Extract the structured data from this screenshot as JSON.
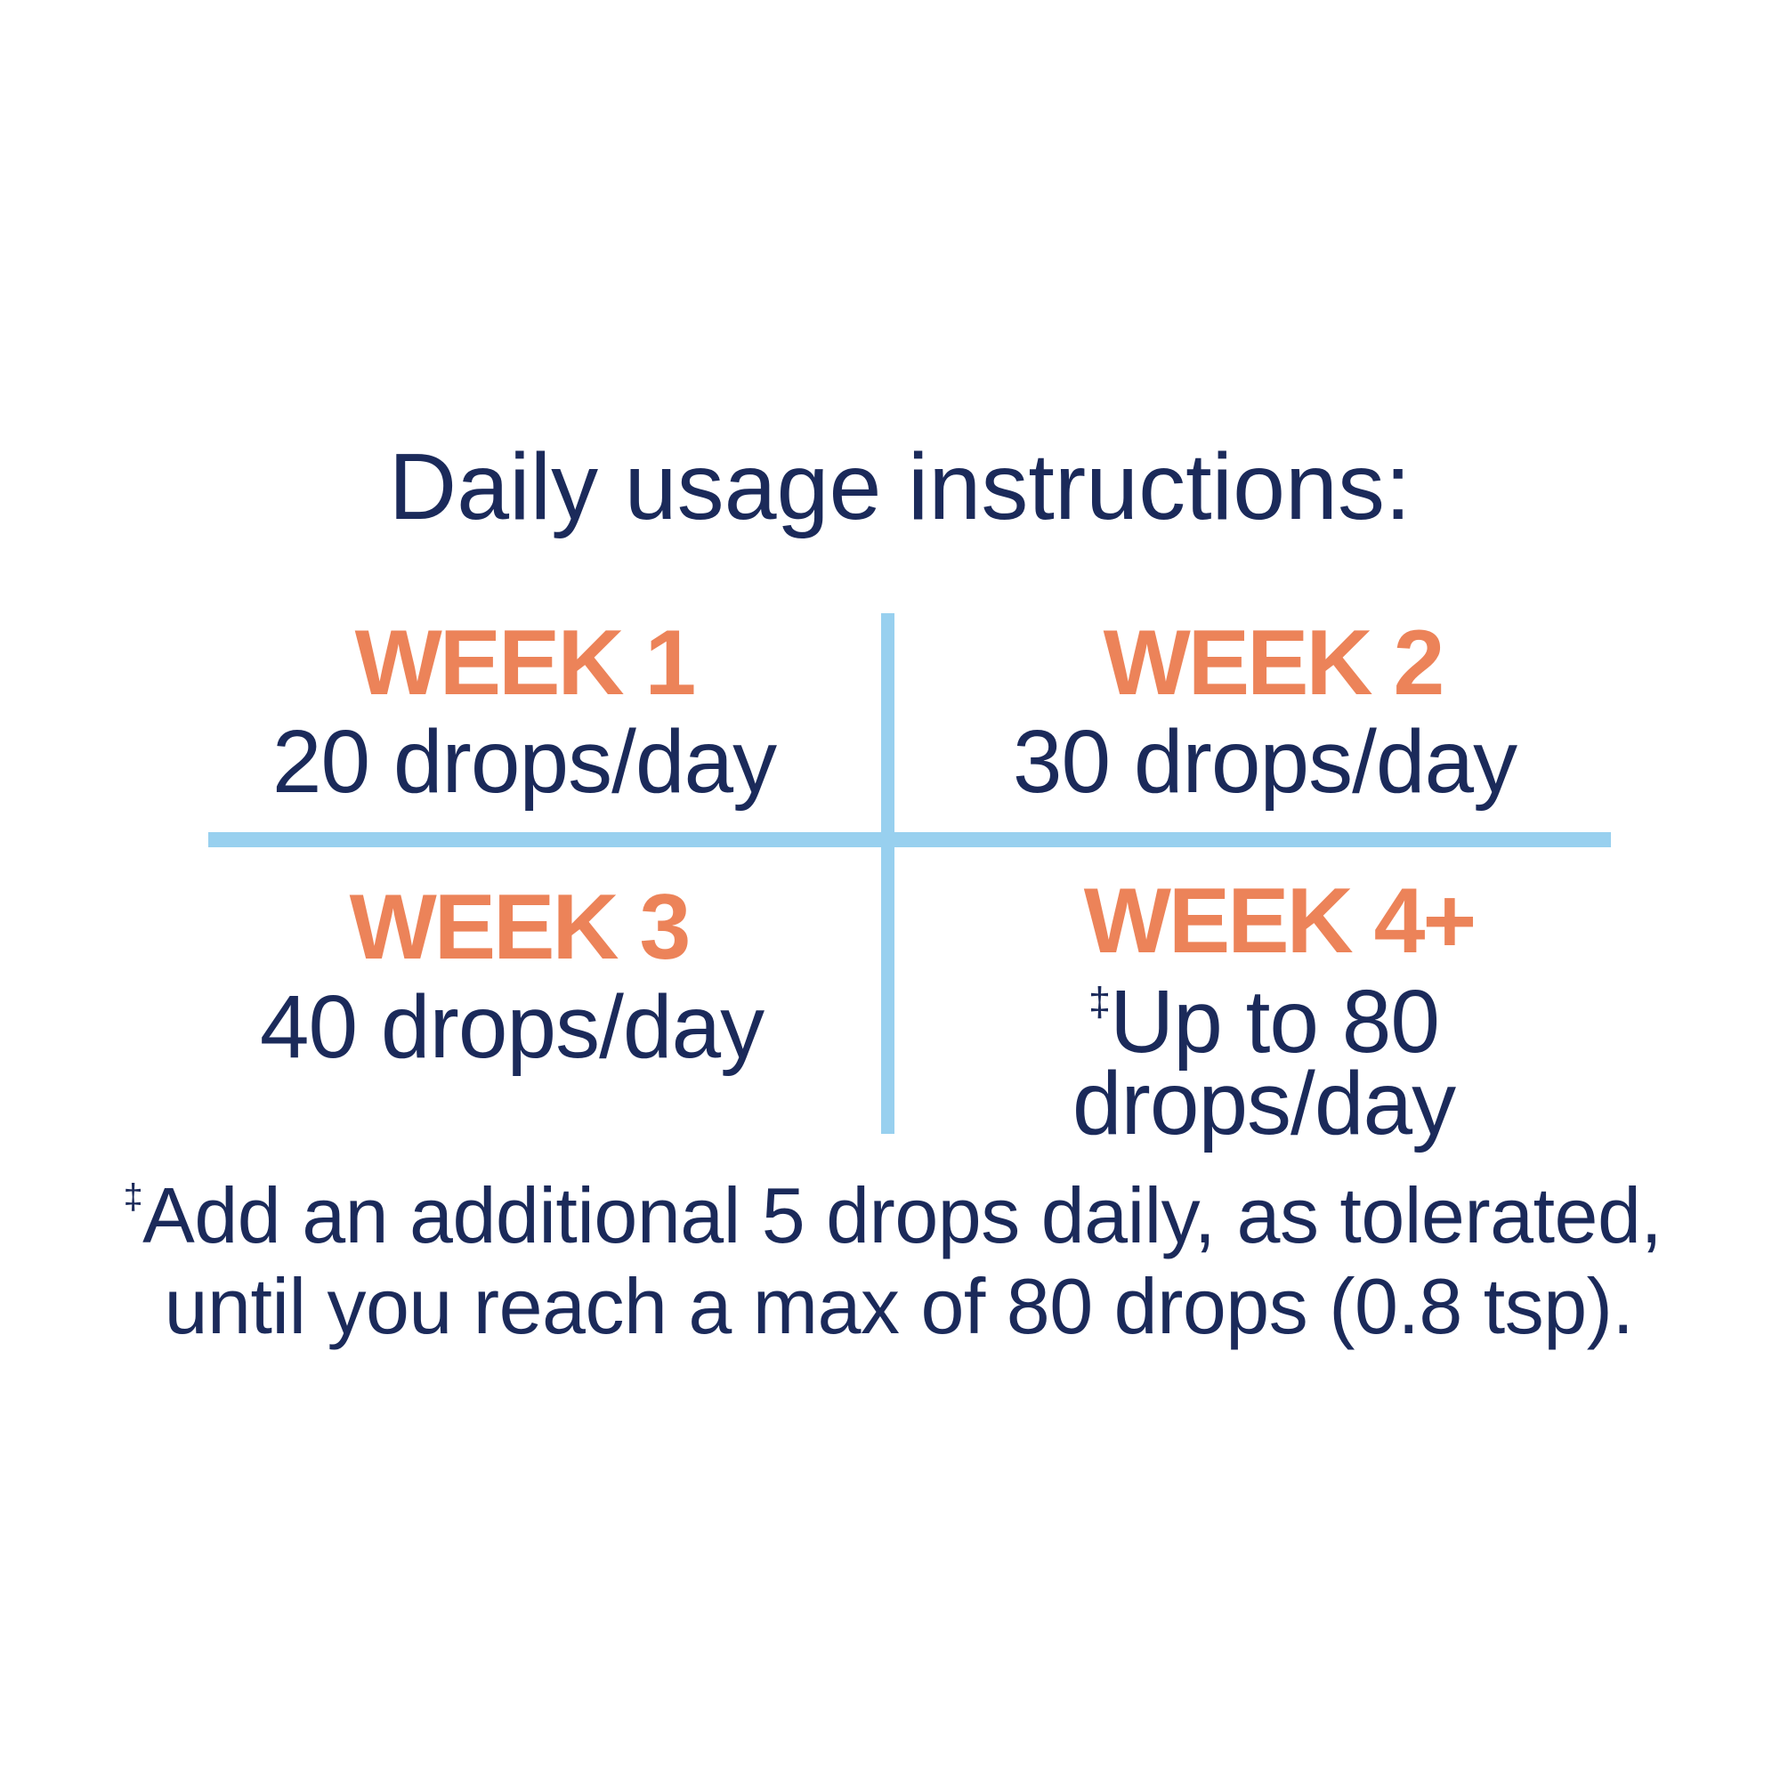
{
  "title": "Daily usage instructions:",
  "grid": [
    {
      "week": "WEEK 1",
      "dose": "20 drops/day"
    },
    {
      "week": "WEEK 2",
      "dose": "30 drops/day"
    },
    {
      "week": "WEEK 3",
      "dose": "40 drops/day"
    },
    {
      "week": "WEEK 4+",
      "dose_marker": "‡",
      "dose_line1": "Up to 80",
      "dose_line2": "drops/day"
    }
  ],
  "footnote": {
    "marker": "‡",
    "line1": "Add an additional 5 drops daily, as tolerated,",
    "line2": "until you reach a max of 80 drops (0.8 tsp)."
  },
  "colors": {
    "text": "#1b2a5a",
    "accent": "#ec8359",
    "divider": "#98d0ef"
  }
}
